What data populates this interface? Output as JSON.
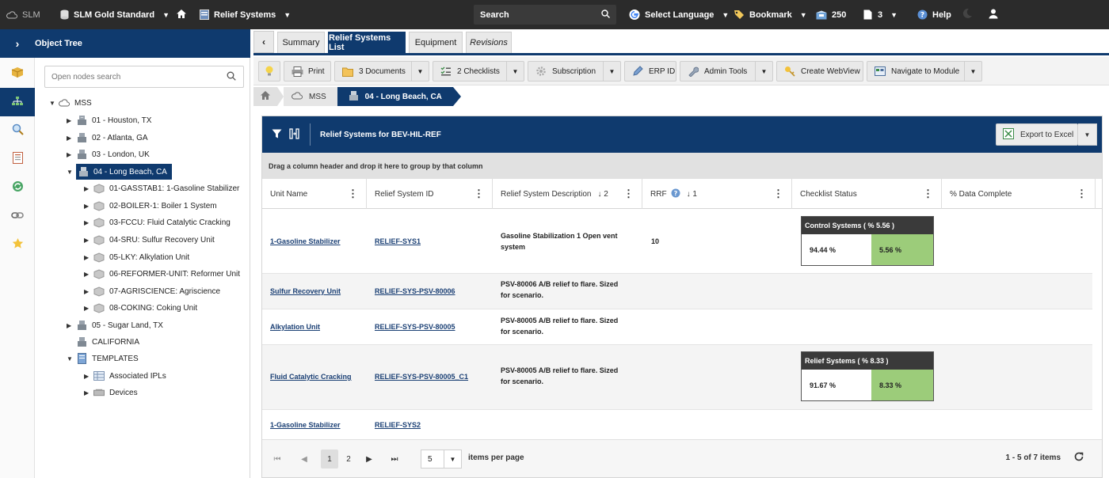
{
  "topbar": {
    "app": "SLM",
    "database": "SLM Gold Standard",
    "module": "Relief Systems",
    "search": "Search",
    "language": "Select Language",
    "bookmark": "Bookmark",
    "inbox_count": "250",
    "docs_count": "3",
    "help": "Help"
  },
  "tree": {
    "header": "Object Tree",
    "search_placeholder": "Open nodes search",
    "nodes": [
      {
        "label": "MSS"
      },
      {
        "label": "01 - Houston, TX"
      },
      {
        "label": "02 - Atlanta, GA"
      },
      {
        "label": "03 - London, UK"
      },
      {
        "label": "04 - Long Beach, CA"
      },
      {
        "label": "01-GASSTAB1: 1-Gasoline Stabilizer"
      },
      {
        "label": "02-BOILER-1: Boiler 1 System"
      },
      {
        "label": "03-FCCU: Fluid Catalytic Cracking"
      },
      {
        "label": "04-SRU: Sulfur Recovery Unit"
      },
      {
        "label": "05-LKY: Alkylation Unit"
      },
      {
        "label": "06-REFORMER-UNIT: Reformer Unit"
      },
      {
        "label": "07-AGRISCIENCE: Agriscience"
      },
      {
        "label": "08-COKING: Coking Unit"
      },
      {
        "label": "05 - Sugar Land, TX"
      },
      {
        "label": "CALIFORNIA"
      },
      {
        "label": "TEMPLATES"
      },
      {
        "label": "Associated IPLs"
      },
      {
        "label": "Devices"
      }
    ]
  },
  "tabs": [
    {
      "label": "Summary"
    },
    {
      "label": "Relief Systems List"
    },
    {
      "label": "Equipment"
    },
    {
      "label": "Revisions"
    }
  ],
  "toolbar": {
    "print": "Print",
    "documents": "3 Documents",
    "checklists": "2 Checklists",
    "subscription": "Subscription",
    "erp": "ERP ID",
    "admin": "Admin Tools",
    "webview": "Create WebView",
    "navigate": "Navigate to Module"
  },
  "breadcrumb": {
    "mss": "MSS",
    "current": "04 - Long Beach, CA"
  },
  "grid": {
    "title": "Relief Systems for BEV-HIL-REF",
    "export": "Export to Excel",
    "group_hint": "Drag a column header and drop it here to group by that column",
    "columns": [
      {
        "label": "Unit Name",
        "sort": ""
      },
      {
        "label": "Relief System ID",
        "sort": ""
      },
      {
        "label": "Relief System Description",
        "sort": "↓ 2"
      },
      {
        "label": "RRF",
        "sort": "↓ 1"
      },
      {
        "label": "Checklist Status",
        "sort": ""
      },
      {
        "label": "% Data Complete",
        "sort": ""
      }
    ],
    "rows": [
      {
        "unit": "1-Gasoline Stabilizer",
        "id": "RELIEF-SYS1",
        "desc1": "Gasoline Stabilization 1 Open vent",
        "desc2": "system",
        "rrf": "10",
        "status_title": "Control Systems ( % 5.56 )",
        "status_left": "94.44 %",
        "status_right": "5.56 %"
      },
      {
        "unit": "Sulfur Recovery Unit",
        "id": "RELIEF-SYS-PSV-80006",
        "desc1": "PSV-80006 A/B relief to flare. Sized",
        "desc2": "for scenario.",
        "rrf": ""
      },
      {
        "unit": "Alkylation Unit",
        "id": "RELIEF-SYS-PSV-80005",
        "desc1": "PSV-80005 A/B relief to flare. Sized",
        "desc2": "for scenario.",
        "rrf": ""
      },
      {
        "unit": "Fluid Catalytic Cracking",
        "id": "RELIEF-SYS-PSV-80005_C1",
        "desc1": "PSV-80005 A/B relief to flare. Sized",
        "desc2": "for scenario.",
        "rrf": "",
        "status_title": "Relief Systems ( % 8.33 )",
        "status_left": "91.67 %",
        "status_right": "8.33 %"
      },
      {
        "unit": "1-Gasoline Stabilizer",
        "id": "RELIEF-SYS2",
        "desc1": "",
        "desc2": "",
        "rrf": ""
      }
    ]
  },
  "pager": {
    "page1": "1",
    "page2": "2",
    "page_size": "5",
    "items_per_page": "items per page",
    "info": "1 - 5 of 7 items"
  },
  "colors": {
    "brand": "#0f3a6e",
    "topbar": "#2b2b2b",
    "status_green": "#9ccc7a"
  }
}
